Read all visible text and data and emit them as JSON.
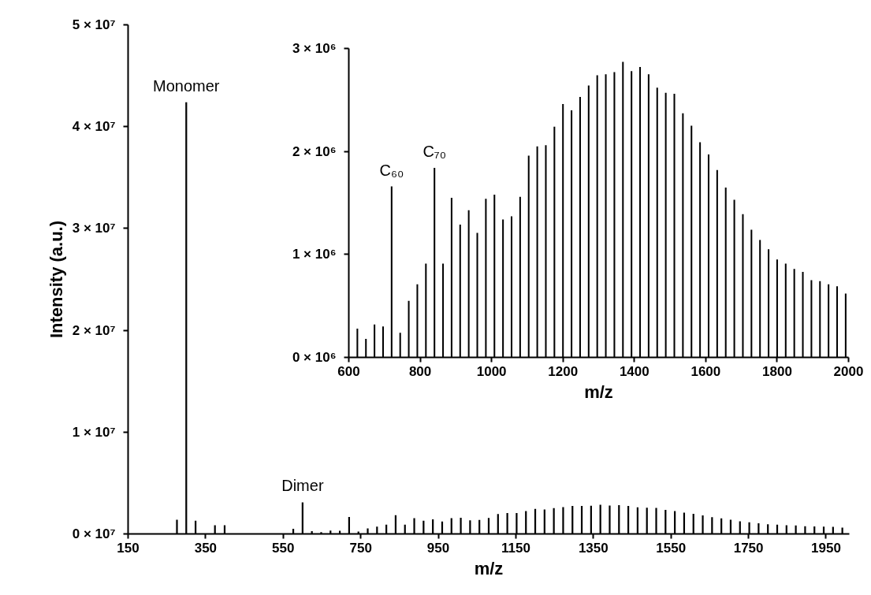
{
  "chart_data": [
    {
      "type": "bar",
      "xlabel": "m/z",
      "ylabel": "Intensity (a.u.)",
      "color": "#000000",
      "x": [
        276,
        300,
        324,
        374,
        399,
        576,
        600,
        624,
        648,
        672,
        696,
        720,
        744,
        768,
        792,
        816,
        840,
        864,
        888,
        912,
        936,
        960,
        984,
        1008,
        1032,
        1056,
        1080,
        1104,
        1128,
        1152,
        1176,
        1200,
        1224,
        1248,
        1272,
        1296,
        1320,
        1344,
        1368,
        1392,
        1416,
        1440,
        1464,
        1488,
        1512,
        1536,
        1560,
        1584,
        1608,
        1632,
        1656,
        1680,
        1704,
        1728,
        1752,
        1776,
        1800,
        1824,
        1848,
        1872,
        1896,
        1920,
        1944,
        1968,
        1992
      ],
      "values": [
        1400000,
        42400000,
        1300000,
        850000,
        850000,
        500000,
        3100000,
        280000,
        180000,
        320000,
        300000,
        1660000,
        240000,
        550000,
        710000,
        910000,
        1840000,
        910000,
        1550000,
        1290000,
        1430000,
        1210000,
        1540000,
        1580000,
        1340000,
        1370000,
        1560000,
        1960000,
        2050000,
        2060000,
        2240000,
        2460000,
        2400000,
        2530000,
        2640000,
        2740000,
        2750000,
        2770000,
        2870000,
        2780000,
        2820000,
        2750000,
        2620000,
        2570000,
        2560000,
        2370000,
        2250000,
        2090000,
        1970000,
        1820000,
        1650000,
        1530000,
        1390000,
        1240000,
        1140000,
        1050000,
        950000,
        910000,
        860000,
        830000,
        750000,
        740000,
        710000,
        690000,
        620000
      ],
      "xlim": [
        150,
        2010
      ],
      "xticks": [
        150,
        350,
        550,
        750,
        950,
        1150,
        1350,
        1550,
        1750,
        1950
      ],
      "ylim": [
        0,
        50000000
      ],
      "yticks": [
        {
          "value": 0,
          "label": "0 × 10⁷"
        },
        {
          "value": 10000000,
          "label": "1 × 10⁷"
        },
        {
          "value": 20000000,
          "label": "2 × 10⁷"
        },
        {
          "value": 30000000,
          "label": "3 × 10⁷"
        },
        {
          "value": 40000000,
          "label": "4 × 10⁷"
        },
        {
          "value": 50000000,
          "label": "5 × 10⁷"
        }
      ],
      "annotations": [
        {
          "text": "Monomer",
          "x": 300,
          "y": 42400000
        },
        {
          "text": "Dimer",
          "x": 600,
          "y": 3100000
        }
      ]
    },
    {
      "type": "bar",
      "xlabel": "m/z",
      "color": "#000000",
      "x": [
        624,
        648,
        672,
        696,
        720,
        744,
        768,
        792,
        816,
        840,
        864,
        888,
        912,
        936,
        960,
        984,
        1008,
        1032,
        1056,
        1080,
        1104,
        1128,
        1152,
        1176,
        1200,
        1224,
        1248,
        1272,
        1296,
        1320,
        1344,
        1368,
        1392,
        1416,
        1440,
        1464,
        1488,
        1512,
        1536,
        1560,
        1584,
        1608,
        1632,
        1656,
        1680,
        1704,
        1728,
        1752,
        1776,
        1800,
        1824,
        1848,
        1872,
        1896,
        1920,
        1944,
        1968,
        1992
      ],
      "values": [
        280000,
        180000,
        320000,
        300000,
        1660000,
        240000,
        550000,
        710000,
        910000,
        1840000,
        910000,
        1550000,
        1290000,
        1430000,
        1210000,
        1540000,
        1580000,
        1340000,
        1370000,
        1560000,
        1960000,
        2050000,
        2060000,
        2240000,
        2460000,
        2400000,
        2530000,
        2640000,
        2740000,
        2750000,
        2770000,
        2870000,
        2780000,
        2820000,
        2750000,
        2620000,
        2570000,
        2560000,
        2370000,
        2250000,
        2090000,
        1970000,
        1820000,
        1650000,
        1530000,
        1390000,
        1240000,
        1140000,
        1050000,
        950000,
        910000,
        860000,
        830000,
        750000,
        740000,
        710000,
        690000,
        620000
      ],
      "xlim": [
        600,
        2000
      ],
      "xticks": [
        600,
        800,
        1000,
        1200,
        1400,
        1600,
        1800,
        2000
      ],
      "ylim": [
        0,
        3000000
      ],
      "yticks": [
        {
          "value": 0,
          "label": "0 × 10⁶"
        },
        {
          "value": 1000000,
          "label": "1 × 10⁶"
        },
        {
          "value": 2000000,
          "label": "2 × 10⁶"
        },
        {
          "value": 3000000,
          "label": "3 × 10⁶"
        }
      ],
      "annotations": [
        {
          "text": "C₆₀",
          "x": 720,
          "y": 1660000
        },
        {
          "text": "C₇₀",
          "x": 840,
          "y": 1840000
        }
      ]
    }
  ]
}
